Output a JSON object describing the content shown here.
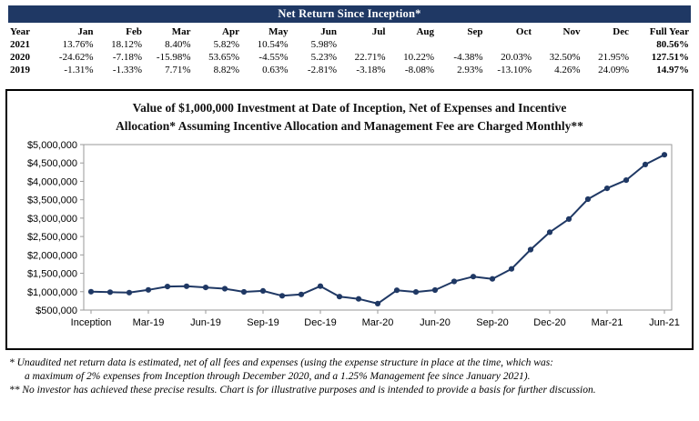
{
  "table": {
    "header": "Net Return Since Inception*",
    "columns": [
      "Year",
      "Jan",
      "Feb",
      "Mar",
      "Apr",
      "May",
      "Jun",
      "Jul",
      "Aug",
      "Sep",
      "Oct",
      "Nov",
      "Dec",
      "Full Year"
    ],
    "rows": [
      {
        "year": "2021",
        "values": [
          "13.76%",
          "18.12%",
          "8.40%",
          "5.82%",
          "10.54%",
          "5.98%",
          "",
          "",
          "",
          "",
          "",
          ""
        ],
        "full_year": "80.56%"
      },
      {
        "year": "2020",
        "values": [
          "-24.62%",
          "-7.18%",
          "-15.98%",
          "53.65%",
          "-4.55%",
          "5.23%",
          "22.71%",
          "10.22%",
          "-4.38%",
          "20.03%",
          "32.50%",
          "21.95%"
        ],
        "full_year": "127.51%"
      },
      {
        "year": "2019",
        "values": [
          "-1.31%",
          "-1.33%",
          "7.71%",
          "8.82%",
          "0.63%",
          "-2.81%",
          "-3.18%",
          "-8.08%",
          "2.93%",
          "-13.10%",
          "4.26%",
          "24.09%"
        ],
        "full_year": "14.97%"
      }
    ],
    "header_bg": "#1F3864"
  },
  "chart_data": {
    "type": "line",
    "title": "Value of $1,000,000 Investment at Date of Inception, Net of Expenses and Incentive Allocation* Assuming Incentive Allocation and Management Fee are Charged Monthly**",
    "title_line1": "Value of $1,000,000 Investment at Date of Inception, Net of Expenses and Incentive",
    "title_line2": "Allocation* Assuming Incentive Allocation and Management Fee are Charged Monthly**",
    "x": [
      "Inception",
      "Jan-19",
      "Feb-19",
      "Mar-19",
      "Apr-19",
      "May-19",
      "Jun-19",
      "Jul-19",
      "Aug-19",
      "Sep-19",
      "Oct-19",
      "Nov-19",
      "Dec-19",
      "Jan-20",
      "Feb-20",
      "Mar-20",
      "Apr-20",
      "May-20",
      "Jun-20",
      "Jul-20",
      "Aug-20",
      "Sep-20",
      "Oct-20",
      "Nov-20",
      "Dec-20",
      "Jan-21",
      "Feb-21",
      "Mar-21",
      "Apr-21",
      "May-21",
      "Jun-21"
    ],
    "values": [
      1000000,
      986900,
      973774,
      1048852,
      1141361,
      1148552,
      1116277,
      1080779,
      993452,
      1022560,
      888605,
      926460,
      1149644,
      866602,
      804380,
      675840,
      1038428,
      991180,
      1043019,
      1279889,
      1410694,
      1348906,
      1619092,
      2145297,
      2616190,
      2976178,
      3515461,
      3810760,
      4032546,
      4457576,
      4724139
    ],
    "x_tick_indices": [
      0,
      3,
      6,
      9,
      12,
      15,
      18,
      21,
      24,
      27,
      30
    ],
    "x_tick_labels": [
      "Inception",
      "Mar-19",
      "Jun-19",
      "Sep-19",
      "Dec-19",
      "Mar-20",
      "Jun-20",
      "Sep-20",
      "Dec-20",
      "Mar-21",
      "Jun-21"
    ],
    "y_tick_values": [
      5000000,
      4500000,
      4000000,
      3500000,
      3000000,
      2500000,
      2000000,
      1500000,
      1000000,
      500000
    ],
    "y_tick_labels": [
      "$5,000,000",
      "$4,500,000",
      "$4,000,000",
      "$3,500,000",
      "$3,000,000",
      "$2,500,000",
      "$2,000,000",
      "$1,500,000",
      "$1,000,000",
      "$500,000"
    ],
    "ylim": [
      500000,
      5000000
    ],
    "grid": false,
    "legend": "none",
    "line_color": "#1F3864",
    "marker": "circle"
  },
  "footnotes": {
    "line1": "*  Unaudited net return data is estimated, net of all fees and expenses (using the expense structure in place at the time, which was:",
    "line2": "a maximum of 2% expenses from Inception through December 2020, and a 1.25% Management fee since January 2021).",
    "line3": "** No investor has achieved these precise results.  Chart is for illustrative purposes and is intended to provide a basis for further discussion."
  }
}
